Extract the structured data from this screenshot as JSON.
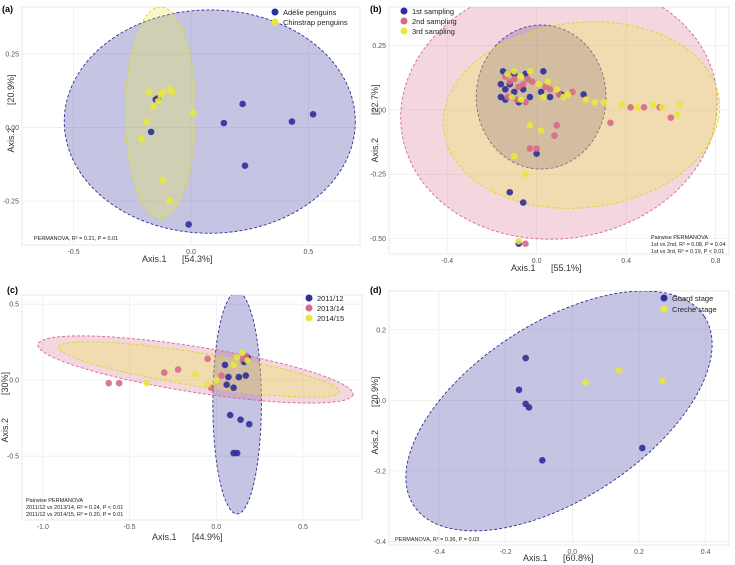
{
  "chart_data": [
    {
      "id": "a",
      "type": "scatter",
      "panel_label": "(a)",
      "xlabel": "Axis.1",
      "xlabel_pct": "[54.3%]",
      "ylabel": "Axis.2",
      "ylabel_pct": "[20.9%]",
      "xlim": [
        -0.72,
        0.72
      ],
      "ylim": [
        -0.4,
        0.41
      ],
      "xticks": [
        {
          "v": -0.5,
          "label": "-0.5"
        },
        {
          "v": 0.0,
          "label": "0.0"
        },
        {
          "v": 0.5,
          "label": "0.5"
        }
      ],
      "yticks": [
        {
          "v": 0.25,
          "label": "0.25"
        },
        {
          "v": 0.0,
          "label": "0.00"
        },
        {
          "v": -0.25,
          "label": "-0.25"
        }
      ],
      "legend_position": "top-right",
      "annotation": [
        "PERMANOVA, R² = 0.21, P = 0.01"
      ],
      "series": [
        {
          "name": "Adélie penguins",
          "color": "#2e2e9a",
          "points": [
            [
              -0.14,
              0.1
            ],
            [
              -0.15,
              0.095
            ],
            [
              -0.17,
              -0.015
            ],
            [
              0.22,
              0.08
            ],
            [
              0.14,
              0.015
            ],
            [
              0.23,
              -0.13
            ],
            [
              0.43,
              0.02
            ],
            [
              0.52,
              0.045
            ],
            [
              -0.01,
              -0.33
            ]
          ],
          "ellipse": {
            "cx": 0.08,
            "cy": 0.02,
            "rx": 0.62,
            "ry": 0.38,
            "angle": 0
          }
        },
        {
          "name": "Chinstrap penguins",
          "color": "#e8e83a",
          "points": [
            [
              -0.13,
              0.11
            ],
            [
              -0.08,
              0.12
            ],
            [
              -0.09,
              0.13
            ],
            [
              -0.12,
              0.12
            ],
            [
              -0.18,
              0.12
            ],
            [
              -0.14,
              0.09
            ],
            [
              -0.19,
              0.02
            ],
            [
              -0.16,
              0.07
            ],
            [
              -0.21,
              -0.04
            ],
            [
              0.01,
              0.05
            ],
            [
              -0.12,
              -0.18
            ],
            [
              -0.09,
              -0.25
            ]
          ],
          "ellipse": {
            "cx": -0.13,
            "cy": 0.05,
            "rx": 0.15,
            "ry": 0.36,
            "angle": 0
          }
        }
      ]
    },
    {
      "id": "b",
      "type": "scatter",
      "panel_label": "(b)",
      "xlabel": "Axis.1",
      "xlabel_pct": "[55.1%]",
      "ylabel": "Axis.2",
      "ylabel_pct": "[22.7%]",
      "xlim": [
        -0.66,
        0.86
      ],
      "ylim": [
        -0.56,
        0.4
      ],
      "xticks": [
        {
          "v": -0.4,
          "label": "-0.4"
        },
        {
          "v": 0.0,
          "label": "0.0"
        },
        {
          "v": 0.4,
          "label": "0.4"
        },
        {
          "v": 0.8,
          "label": "0.8"
        }
      ],
      "yticks": [
        {
          "v": 0.25,
          "label": "0.25"
        },
        {
          "v": 0.0,
          "label": "0.00"
        },
        {
          "v": -0.25,
          "label": "-0.25"
        },
        {
          "v": -0.5,
          "label": "-0.50"
        }
      ],
      "legend_position": "top-left",
      "annotation": [
        "Pairwise PERMANOVA",
        "1st vs 2nd, R² = 0.08, P = 0.04",
        "1st vs 3rd, R² = 0.19, P < 0.01"
      ],
      "series": [
        {
          "name": "1st sampling",
          "color": "#2e2e9a",
          "points": [
            [
              -0.15,
              0.15
            ],
            [
              -0.13,
              0.14
            ],
            [
              -0.1,
              0.14
            ],
            [
              -0.05,
              0.14
            ],
            [
              0.03,
              0.15
            ],
            [
              -0.16,
              0.1
            ],
            [
              -0.14,
              0.08
            ],
            [
              -0.12,
              0.1
            ],
            [
              -0.1,
              0.07
            ],
            [
              -0.06,
              0.08
            ],
            [
              -0.03,
              0.05
            ],
            [
              0.02,
              0.07
            ],
            [
              0.06,
              0.05
            ],
            [
              -0.16,
              0.05
            ],
            [
              -0.14,
              0.04
            ],
            [
              -0.11,
              0.05
            ],
            [
              -0.08,
              0.03
            ],
            [
              0.0,
              -0.17
            ],
            [
              0.11,
              0.06
            ],
            [
              0.21,
              0.06
            ],
            [
              -0.12,
              -0.32
            ],
            [
              -0.06,
              -0.36
            ],
            [
              -0.08,
              -0.52
            ]
          ],
          "ellipse": {
            "cx": 0.02,
            "cy": 0.05,
            "rx": 0.29,
            "ry": 0.28,
            "angle": 0
          }
        },
        {
          "name": "2nd sampling",
          "color": "#d66a88",
          "points": [
            [
              -0.14,
              0.13
            ],
            [
              -0.12,
              0.11
            ],
            [
              -0.1,
              0.12
            ],
            [
              -0.08,
              0.09
            ],
            [
              -0.06,
              0.1
            ],
            [
              -0.04,
              0.12
            ],
            [
              -0.02,
              0.11
            ],
            [
              0.04,
              0.09
            ],
            [
              0.06,
              0.08
            ],
            [
              0.1,
              0.06
            ],
            [
              0.16,
              0.07
            ],
            [
              -0.13,
              0.05
            ],
            [
              -0.09,
              0.04
            ],
            [
              -0.05,
              0.03
            ],
            [
              0.09,
              -0.06
            ],
            [
              0.0,
              -0.15
            ],
            [
              -0.03,
              -0.15
            ],
            [
              0.08,
              -0.1
            ],
            [
              0.42,
              0.01
            ],
            [
              0.48,
              0.01
            ],
            [
              0.55,
              0.01
            ],
            [
              0.6,
              -0.03
            ],
            [
              0.33,
              -0.05
            ],
            [
              -0.05,
              -0.52
            ]
          ],
          "ellipse": {
            "cx": 0.1,
            "cy": 0.0,
            "rx": 0.71,
            "ry": 0.5,
            "angle": 8
          }
        },
        {
          "name": "3rd sampling",
          "color": "#e8e83a",
          "points": [
            [
              -0.13,
              0.14
            ],
            [
              -0.1,
              0.15
            ],
            [
              -0.07,
              0.13
            ],
            [
              -0.03,
              0.15
            ],
            [
              0.01,
              0.1
            ],
            [
              0.05,
              0.11
            ],
            [
              0.09,
              0.08
            ],
            [
              0.14,
              0.06
            ],
            [
              -0.11,
              0.05
            ],
            [
              -0.07,
              0.04
            ],
            [
              0.03,
              0.05
            ],
            [
              0.12,
              0.05
            ],
            [
              0.22,
              0.04
            ],
            [
              0.26,
              0.03
            ],
            [
              0.3,
              0.03
            ],
            [
              0.38,
              0.02
            ],
            [
              0.45,
              0.01
            ],
            [
              0.52,
              0.02
            ],
            [
              0.56,
              0.01
            ],
            [
              0.64,
              0.02
            ],
            [
              0.63,
              -0.02
            ],
            [
              -0.03,
              -0.06
            ],
            [
              0.02,
              -0.08
            ],
            [
              -0.08,
              -0.51
            ],
            [
              -0.1,
              -0.18
            ],
            [
              -0.05,
              -0.25
            ]
          ],
          "ellipse": {
            "cx": 0.2,
            "cy": -0.02,
            "rx": 0.62,
            "ry": 0.36,
            "angle": 6
          }
        }
      ]
    },
    {
      "id": "c",
      "type": "scatter",
      "panel_label": "(c)",
      "xlabel": "Axis.1",
      "xlabel_pct": "[44.9%]",
      "ylabel": "Axis.2",
      "ylabel_pct": "[30%]",
      "xlim": [
        -1.12,
        0.84
      ],
      "ylim": [
        -0.92,
        0.56
      ],
      "xticks": [
        {
          "v": -1.0,
          "label": "-1.0"
        },
        {
          "v": -0.5,
          "label": "-0.5"
        },
        {
          "v": 0.0,
          "label": "0.0"
        },
        {
          "v": 0.5,
          "label": "0.5"
        }
      ],
      "yticks": [
        {
          "v": 0.5,
          "label": "0.5"
        },
        {
          "v": 0.0,
          "label": "0.0"
        },
        {
          "v": -0.5,
          "label": "-0.5"
        }
      ],
      "legend_position": "top-right",
      "annotation": [
        "Pairwise PERMANOVA",
        "2011/12 vs 2013/14, R² = 0.24, P < 0.01",
        "2011/12 vs 2014/15, R² = 0.20, P = 0.01"
      ],
      "series": [
        {
          "name": "2011/12",
          "color": "#2e2e9a",
          "points": [
            [
              0.18,
              0.15
            ],
            [
              0.16,
              0.12
            ],
            [
              0.05,
              0.1
            ],
            [
              0.07,
              0.02
            ],
            [
              0.13,
              0.02
            ],
            [
              0.17,
              0.03
            ],
            [
              0.1,
              -0.05
            ],
            [
              0.06,
              -0.03
            ],
            [
              0.08,
              -0.23
            ],
            [
              0.14,
              -0.26
            ],
            [
              0.19,
              -0.29
            ],
            [
              0.1,
              -0.48
            ],
            [
              0.12,
              -0.48
            ]
          ],
          "ellipse": {
            "cx": 0.12,
            "cy": -0.15,
            "rx": 0.14,
            "ry": 0.73,
            "angle": 0
          }
        },
        {
          "name": "2013/14",
          "color": "#d66a88",
          "points": [
            [
              -0.62,
              -0.02
            ],
            [
              -0.56,
              -0.02
            ],
            [
              -0.3,
              0.05
            ],
            [
              -0.22,
              0.07
            ],
            [
              -0.05,
              0.14
            ],
            [
              0.15,
              0.14
            ],
            [
              0.17,
              0.16
            ],
            [
              0.03,
              0.03
            ],
            [
              -0.03,
              -0.05
            ]
          ],
          "ellipse": {
            "cx": -0.12,
            "cy": 0.07,
            "rx": 0.92,
            "ry": 0.15,
            "angle": -9
          }
        },
        {
          "name": "2014/15",
          "color": "#e8e83a",
          "points": [
            [
              -0.4,
              -0.02
            ],
            [
              -0.12,
              0.04
            ],
            [
              0.12,
              0.15
            ],
            [
              0.15,
              0.18
            ],
            [
              0.18,
              0.13
            ],
            [
              0.1,
              0.1
            ],
            [
              0.0,
              0.0
            ],
            [
              -0.05,
              -0.03
            ]
          ],
          "ellipse": {
            "cx": -0.1,
            "cy": 0.07,
            "rx": 0.82,
            "ry": 0.11,
            "angle": -9
          }
        }
      ]
    },
    {
      "id": "d",
      "type": "scatter",
      "panel_label": "(d)",
      "xlabel": "Axis.1",
      "xlabel_pct": "[60.8%]",
      "ylabel": "Axis.2",
      "ylabel_pct": "[20.9%]",
      "xlim": [
        -0.55,
        0.47
      ],
      "ylim": [
        -0.41,
        0.31
      ],
      "xticks": [
        {
          "v": -0.4,
          "label": "-0.4"
        },
        {
          "v": -0.2,
          "label": "-0.2"
        },
        {
          "v": 0.0,
          "label": "0.0"
        },
        {
          "v": 0.2,
          "label": "0.2"
        },
        {
          "v": 0.4,
          "label": "0.4"
        }
      ],
      "yticks": [
        {
          "v": 0.2,
          "label": "0.2"
        },
        {
          "v": 0.0,
          "label": "0.0"
        },
        {
          "v": -0.2,
          "label": "-0.2"
        },
        {
          "v": -0.4,
          "label": "-0.4"
        }
      ],
      "legend_position": "top-right",
      "annotation": [
        "PERMANOVA, R² = 0.36, P = 0.03"
      ],
      "series": [
        {
          "name": "Guard stage",
          "color": "#2e2e9a",
          "points": [
            [
              -0.14,
              0.12
            ],
            [
              -0.16,
              0.03
            ],
            [
              -0.14,
              -0.01
            ],
            [
              -0.13,
              -0.02
            ],
            [
              -0.09,
              -0.17
            ],
            [
              0.21,
              -0.135
            ]
          ],
          "ellipse": {
            "cx": -0.04,
            "cy": -0.03,
            "rx": 0.52,
            "ry": 0.25,
            "angle": 33
          }
        },
        {
          "name": "Creche stage",
          "color": "#e8e83a",
          "points": [
            [
              0.04,
              0.05
            ],
            [
              0.14,
              0.085
            ],
            [
              0.27,
              0.055
            ]
          ],
          "ellipse": null
        }
      ]
    }
  ]
}
